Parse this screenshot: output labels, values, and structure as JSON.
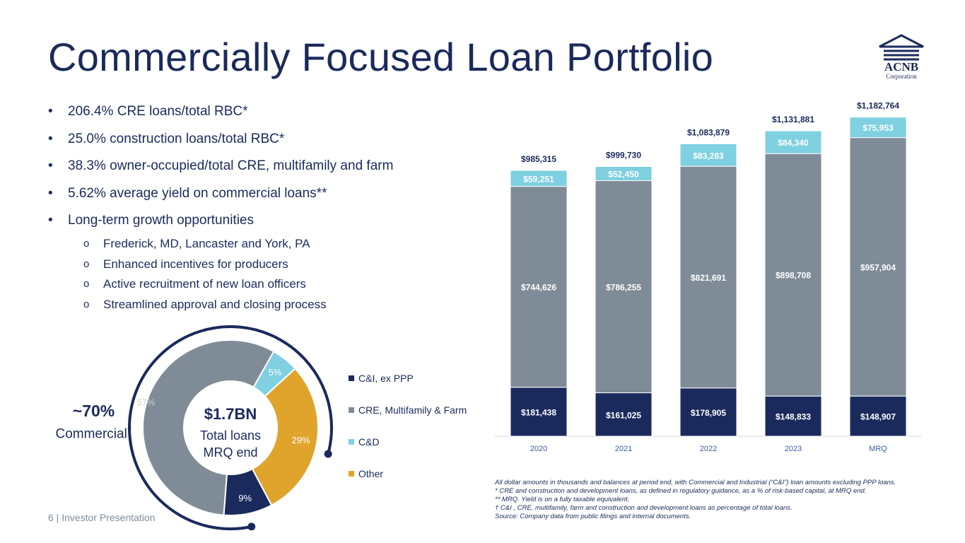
{
  "title": "Commercially Focused Loan Portfolio",
  "logo": {
    "line1": "ACNB",
    "line2": "Corporation"
  },
  "bullets": [
    "206.4% CRE loans/total RBC*",
    "25.0% construction loans/total RBC*",
    "38.3% owner-occupied/total CRE, multifamily and farm",
    "5.62% average yield on commercial loans**",
    "Long-term growth opportunities"
  ],
  "sub_bullets": [
    "Frederick, MD, Lancaster and York, PA",
    "Enhanced incentives for producers",
    "Active recruitment of new loan officers",
    "Streamlined approval and closing process"
  ],
  "commercial": {
    "pct": "~70%",
    "label": "Commercial",
    "mark": "†"
  },
  "footer": "6  | Investor Presentation",
  "notes": [
    "All dollar amounts in thousands and balances at period end, with Commercial and Industrial (“C&I”) loan amounts excluding PPP loans.",
    "* CRE and construction and development  loans, as defined in regulatory guidance, as a % of risk-based capital, at MRQ end.",
    "** MRQ. Yield is on a fully taxable equivalent.",
    "† C&I , CRE, multifamily, farm and construction and development loans as percentage of total loans.",
    "Source: Company data from public filings and internal documents."
  ],
  "chart_data": [
    {
      "type": "pie",
      "donut": true,
      "center_text": [
        "$1.7BN",
        "Total loans",
        "MRQ end"
      ],
      "labels": [
        "C&I, ex PPP",
        "CRE, Multifamily & Farm",
        "C&D",
        "Other"
      ],
      "values": [
        9,
        57,
        5,
        29
      ],
      "value_labels": [
        "9%",
        "57%",
        "5%",
        "29%"
      ],
      "colors": [
        "#1b2a5c",
        "#7f8c97",
        "#7fd0e0",
        "#e0a32c"
      ],
      "legend_position": "right"
    },
    {
      "type": "bar",
      "stacked": true,
      "categories": [
        "2020",
        "2021",
        "2022",
        "2023",
        "MRQ"
      ],
      "series": [
        {
          "values": [
            181438,
            161025,
            178905,
            148833,
            148907
          ],
          "labels": [
            "$181,438",
            "$161,025",
            "$178,905",
            "$148,833",
            "$148,907"
          ],
          "color": "#1b2a5c"
        },
        {
          "values": [
            744626,
            786255,
            821691,
            898708,
            957904
          ],
          "labels": [
            "$744,626",
            "$786,255",
            "$821,691",
            "$898,708",
            "$957,904"
          ],
          "color": "#7f8c97"
        },
        {
          "values": [
            59251,
            52450,
            83283,
            84340,
            75953
          ],
          "labels": [
            "$59,251",
            "$52,450",
            "$83,283",
            "$84,340",
            "$75,953"
          ],
          "color": "#7fd0e0"
        }
      ],
      "totals": [
        985315,
        999730,
        1083879,
        1131881,
        1182764
      ],
      "total_labels": [
        "$985,315",
        "$999,730",
        "$1,083,879",
        "$1,131,881",
        "$1,182,764"
      ],
      "ylim": [
        0,
        1250000
      ],
      "grid": false
    }
  ]
}
